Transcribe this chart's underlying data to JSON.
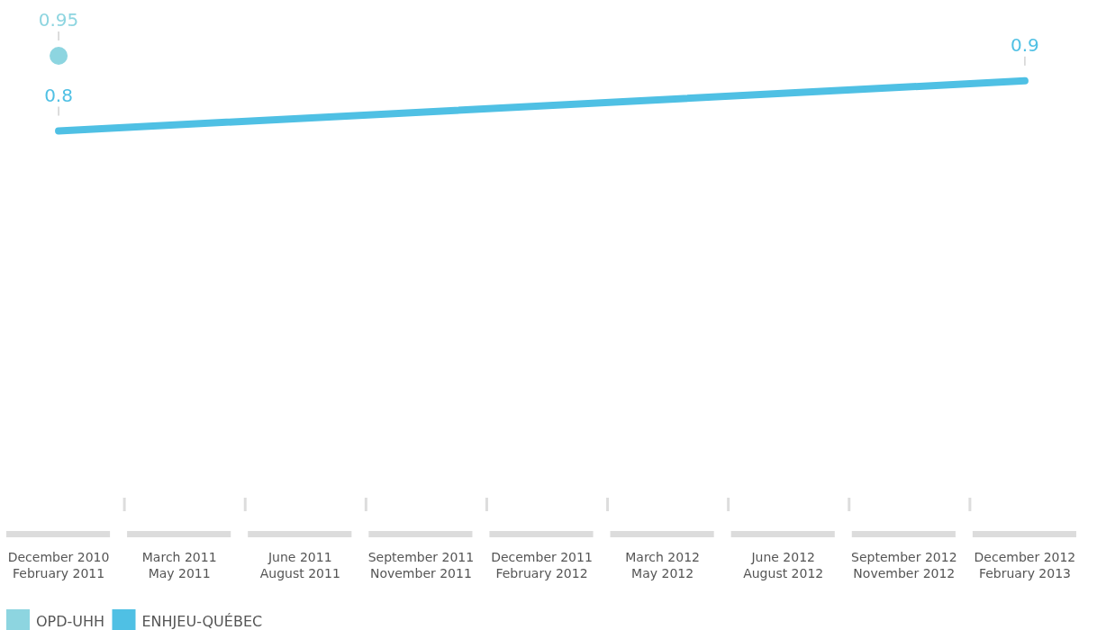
{
  "chart_data": {
    "type": "line",
    "categories": [
      "December 2010\nFebruary 2011",
      "March 2011\nMay 2011",
      "June 2011\nAugust 2011",
      "September 2011\nNovember 2011",
      "December 2011\nFebruary 2012",
      "March 2012\nMay 2012",
      "June 2012\nAugust 2012",
      "September 2012\nNovember 2012",
      "December 2012\nFebruary 2013"
    ],
    "series": [
      {
        "name": "OPD-UHH",
        "color": "#8dd5e0",
        "type": "scatter",
        "marker": "circle",
        "values": [
          0.95,
          null,
          null,
          null,
          null,
          null,
          null,
          null,
          null
        ]
      },
      {
        "name": "ENHJEU-QUÉBEC",
        "color": "#4fc0e4",
        "values": [
          0.8,
          null,
          null,
          null,
          null,
          null,
          null,
          null,
          0.9
        ]
      }
    ],
    "data_labels": true,
    "legend": "bottom left",
    "tick_labels": "x",
    "marker": "none"
  }
}
